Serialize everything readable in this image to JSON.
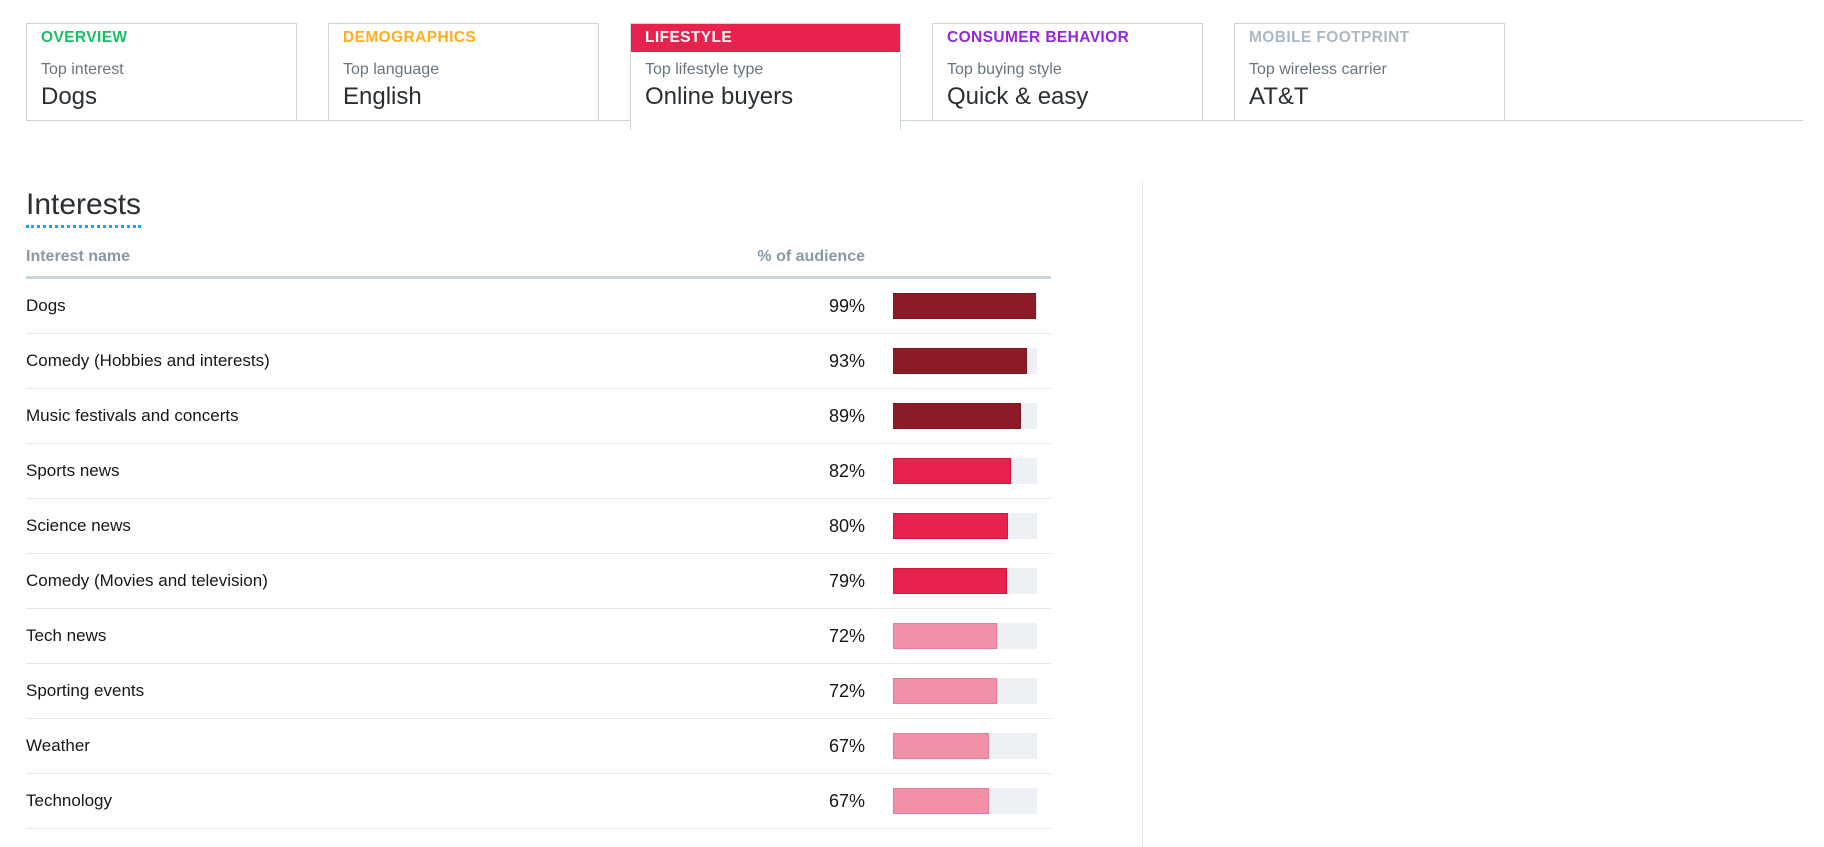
{
  "summary_tabs": [
    {
      "label": "OVERVIEW",
      "color": "#17BF63",
      "active": false,
      "stat_label": "Top interest",
      "stat_value": "Dogs"
    },
    {
      "label": "DEMOGRAPHICS",
      "color": "#FFAD1F",
      "active": false,
      "stat_label": "Top language",
      "stat_value": "English"
    },
    {
      "label": "LIFESTYLE",
      "color": "#E8224E",
      "active": true,
      "stat_label": "Top lifestyle type",
      "stat_value": "Online buyers"
    },
    {
      "label": "CONSUMER BEHAVIOR",
      "color": "#9426DE",
      "active": false,
      "stat_label": "Top buying style",
      "stat_value": "Quick & easy"
    },
    {
      "label": "MOBILE FOOTPRINT",
      "color": "#AAB8C2",
      "active": false,
      "stat_label": "Top wireless carrier",
      "stat_value": "AT&T"
    }
  ],
  "interests_section": {
    "title": "Interests",
    "title_underline_color": "#1DA1F2",
    "columns": {
      "name": "Interest name",
      "percent": "% of audience"
    }
  },
  "chart_data": {
    "type": "bar",
    "orientation": "horizontal",
    "title": "Interests",
    "xlabel": "% of audience",
    "ylabel": "Interest name",
    "xlim": [
      0,
      100
    ],
    "categories": [
      "Dogs",
      "Comedy (Hobbies and interests)",
      "Music festivals and concerts",
      "Sports news",
      "Science news",
      "Comedy (Movies and television)",
      "Tech news",
      "Sporting events",
      "Weather",
      "Technology"
    ],
    "values": [
      99,
      93,
      89,
      82,
      80,
      79,
      72,
      72,
      67,
      67
    ],
    "value_suffix": "%",
    "bar_colors": [
      "#8C1A27",
      "#8C1A27",
      "#8C1A27",
      "#E8224E",
      "#E8224E",
      "#E8224E",
      "#F08FA6",
      "#F08FA6",
      "#F08FA6",
      "#F08FA6"
    ],
    "bar_border_colors": [
      "#7A1520",
      "#7A1520",
      "#7A1520",
      "#D11642",
      "#D11642",
      "#D11642",
      "#E77C96",
      "#E77C96",
      "#E77C96",
      "#E77C96"
    ],
    "track_color": "#EDF1F5",
    "grid": false,
    "legend": false
  },
  "palette": {
    "tab_border": "#CCD6DD",
    "row_separator": "#E1E8ED",
    "header_rule": "#C8D6DE",
    "vertical_divider": "#E6ECF0"
  }
}
